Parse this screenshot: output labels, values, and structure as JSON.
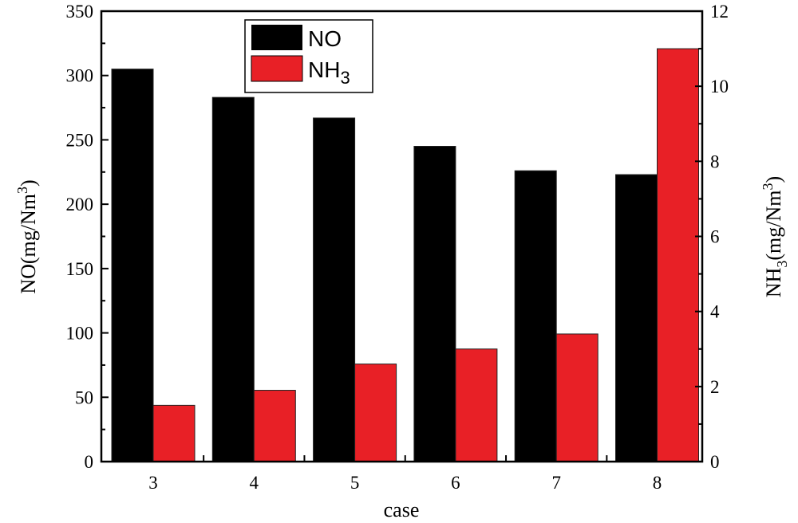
{
  "chart_data": {
    "type": "bar",
    "title": "",
    "xlabel": "case",
    "ylabel": "NO(mg/Nm3)",
    "ylabel_right": "NH3(mg/Nm3)",
    "categories": [
      "3",
      "4",
      "5",
      "6",
      "7",
      "8"
    ],
    "series": [
      {
        "name": "NO",
        "axis": "left",
        "color": "#000000",
        "values": [
          305,
          283,
          267,
          245,
          226,
          223
        ]
      },
      {
        "name": "NH3",
        "axis": "right",
        "color": "#e82026",
        "values": [
          1.5,
          1.9,
          2.6,
          3.0,
          3.4,
          11.0
        ]
      }
    ],
    "ylim": [
      0,
      350
    ],
    "ylim_right": [
      0,
      12
    ],
    "yticks": [
      "0",
      "50",
      "100",
      "150",
      "200",
      "250",
      "300",
      "350"
    ],
    "yticks_right": [
      "0",
      "2",
      "4",
      "6",
      "8",
      "10",
      "12"
    ],
    "legend": {
      "placement": "top-left",
      "entries": [
        "NO",
        "NH3"
      ]
    },
    "grid": false
  }
}
